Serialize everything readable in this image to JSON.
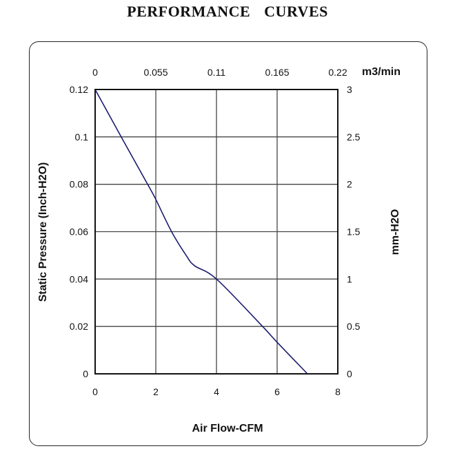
{
  "chart_data": {
    "type": "line",
    "title": "PERFORMANCE    CURVES",
    "xlabel": "Air Flow-CFM",
    "ylabel": "Static Pressure (Inch-H2O)",
    "x2label": "m3/min",
    "y2label": "mm-H2O",
    "xlim": [
      0,
      8
    ],
    "ylim": [
      0,
      0.12
    ],
    "xticks": [
      "0",
      "2",
      "4",
      "6",
      "8"
    ],
    "yticks": [
      "0",
      "0.02",
      "0.04",
      "0.06",
      "0.08",
      "0.1",
      "0.12"
    ],
    "x2ticks": [
      "0",
      "0.055",
      "0.11",
      "0.165",
      "0.22"
    ],
    "y2ticks": [
      "0",
      "0.5",
      "1",
      "1.5",
      "2",
      "2.5",
      "3"
    ],
    "grid": true,
    "line_color": "#1a1a6e",
    "series": [
      {
        "x": [
          0,
          0.86,
          1.73,
          2,
          2.52,
          3.0,
          3.28,
          4,
          5.52,
          6,
          7
        ],
        "y": [
          0.12,
          0.1,
          0.08,
          0.0736,
          0.06,
          0.05,
          0.0456,
          0.04,
          0.02,
          0.0133,
          0
        ]
      }
    ]
  }
}
